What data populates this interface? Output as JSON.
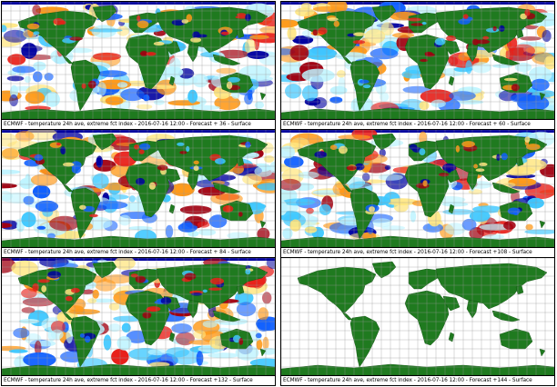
{
  "panels": [
    {
      "caption": "ECMWF - temperature 24h ave, extreme fct index - 2016-07-16 12:00 - Forecast + 36 - Surface",
      "has_data": true
    },
    {
      "caption": "ECMWF - temperature 24h ave, extreme fct index - 2016-07-16 12:00 - Forecast + 60 - Surface",
      "has_data": true
    },
    {
      "caption": "ECMWF - temperature 24h ave, extreme fct index - 2016-07-16 12:00 - Forecast + 84 - Surface",
      "has_data": true
    },
    {
      "caption": "ECMWF - temperature 24h ave, extreme fct index - 2016-07-16 12:00 - Forecast +108 - Surface",
      "has_data": true
    },
    {
      "caption": "ECMWF - temperature 24h ave, extreme fct index - 2016-07-16 12:00 - Forecast +132 - Surface",
      "has_data": true
    },
    {
      "caption": "ECMWF - temperature 24h ave, extreme fct index - 2016-07-16 12:00 - Forecast +144 - Surface",
      "has_data": false
    }
  ],
  "colors": {
    "land": "#1f7a1f",
    "grid": "#9a9a9a",
    "ocean": "#ffffff",
    "warm_light": "#ffe680",
    "warm_mid": "#ff9a1a",
    "warm_strong": "#e8201a",
    "warm_extreme": "#a00010",
    "cold_light": "#bff4ff",
    "cold_mid": "#40c8ff",
    "cold_strong": "#1060ff",
    "cold_extreme": "#0000a0"
  }
}
